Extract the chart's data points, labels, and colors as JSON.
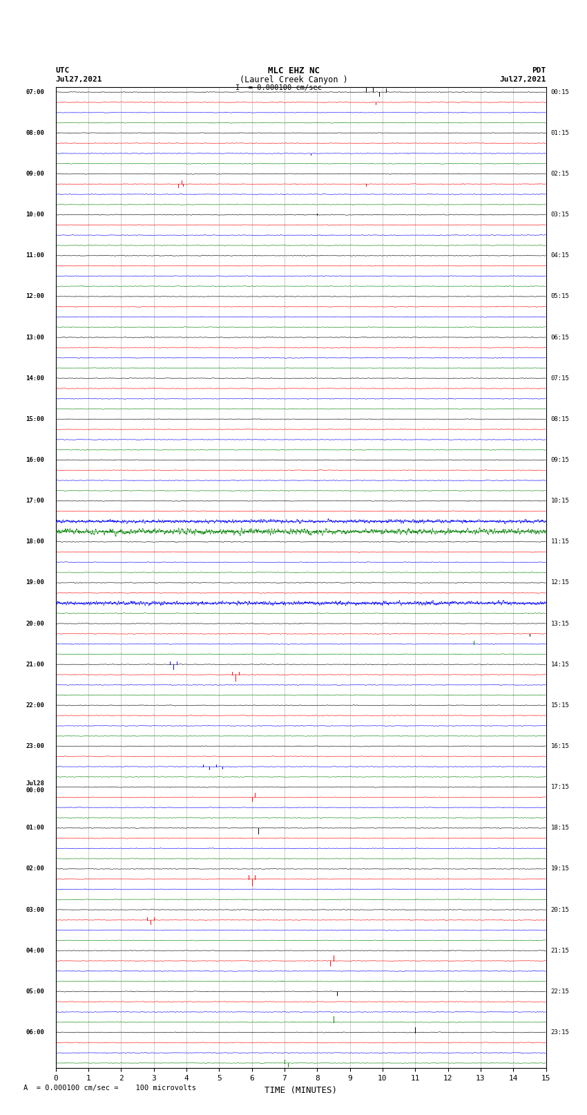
{
  "title_line1": "MLC EHZ NC",
  "title_line2": "(Laurel Creek Canyon )",
  "title_line3": "I = 0.000100 cm/sec",
  "left_label_line1": "UTC",
  "left_label_line2": "Jul27,2021",
  "right_label_line1": "PDT",
  "right_label_line2": "Jul27,2021",
  "xlabel": "TIME (MINUTES)",
  "footnote": "A  = 0.000100 cm/sec =    100 microvolts",
  "xlim": [
    0,
    15
  ],
  "xticks": [
    0,
    1,
    2,
    3,
    4,
    5,
    6,
    7,
    8,
    9,
    10,
    11,
    12,
    13,
    14,
    15
  ],
  "background_color": "#ffffff",
  "trace_colors": [
    "black",
    "red",
    "blue",
    "green"
  ],
  "grid_color": "#aaaaaa",
  "grid_linewidth": 0.4,
  "left_labels": [
    "07:00",
    "08:00",
    "09:00",
    "10:00",
    "11:00",
    "12:00",
    "13:00",
    "14:00",
    "15:00",
    "16:00",
    "17:00",
    "18:00",
    "19:00",
    "20:00",
    "21:00",
    "22:00",
    "23:00",
    "Jul28\n00:00",
    "01:00",
    "02:00",
    "03:00",
    "04:00",
    "05:00",
    "06:00"
  ],
  "right_labels": [
    "00:15",
    "01:15",
    "02:15",
    "03:15",
    "04:15",
    "05:15",
    "06:15",
    "07:15",
    "08:15",
    "09:15",
    "10:15",
    "11:15",
    "12:15",
    "13:15",
    "14:15",
    "15:15",
    "16:15",
    "17:15",
    "18:15",
    "19:15",
    "20:15",
    "21:15",
    "22:15",
    "23:15"
  ]
}
